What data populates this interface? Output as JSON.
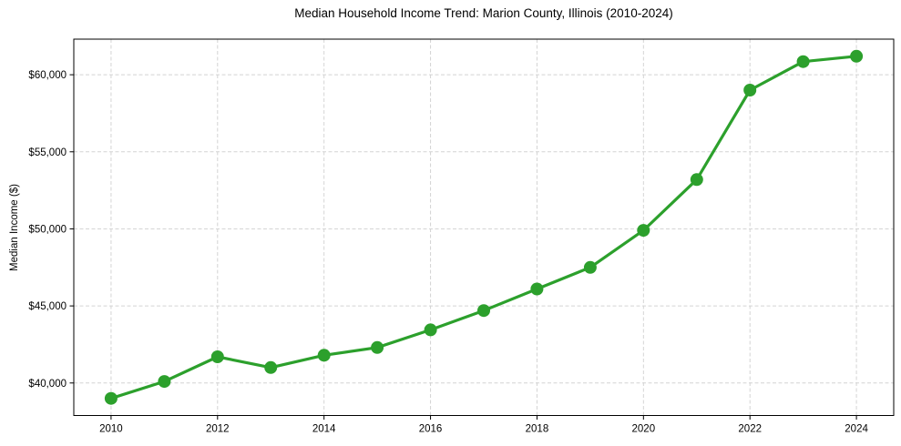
{
  "chart_data": {
    "type": "line",
    "title": "Median Household Income Trend: Marion County, Illinois (2010-2024)",
    "xlabel": "",
    "ylabel": "Median Income ($)",
    "series_name": "Median Household Income",
    "x": [
      2010,
      2011,
      2012,
      2013,
      2014,
      2015,
      2016,
      2017,
      2018,
      2019,
      2020,
      2021,
      2022,
      2023,
      2024
    ],
    "values": [
      39000,
      40100,
      41700,
      41000,
      41800,
      42300,
      43450,
      44700,
      46100,
      47500,
      49900,
      53200,
      59000,
      60850,
      61200
    ],
    "xlim": [
      2009.3,
      2024.7
    ],
    "ylim": [
      37890,
      62310
    ],
    "xticks": [
      2010,
      2012,
      2014,
      2016,
      2018,
      2020,
      2022,
      2024
    ],
    "xtick_labels": [
      "2010",
      "2012",
      "2014",
      "2016",
      "2018",
      "2020",
      "2022",
      "2024"
    ],
    "yticks": [
      40000,
      45000,
      50000,
      55000,
      60000
    ],
    "ytick_labels": [
      "$40,000",
      "$45,000",
      "$50,000",
      "$55,000",
      "$60,000"
    ],
    "grid": true,
    "grid_style": "dashed",
    "legend": "none",
    "line_color": "#2ca02c",
    "marker": "circle",
    "marker_color": "#2ca02c",
    "background_color": "#ffffff",
    "text_color": "#000000",
    "grid_color": "#d4d4d4"
  }
}
